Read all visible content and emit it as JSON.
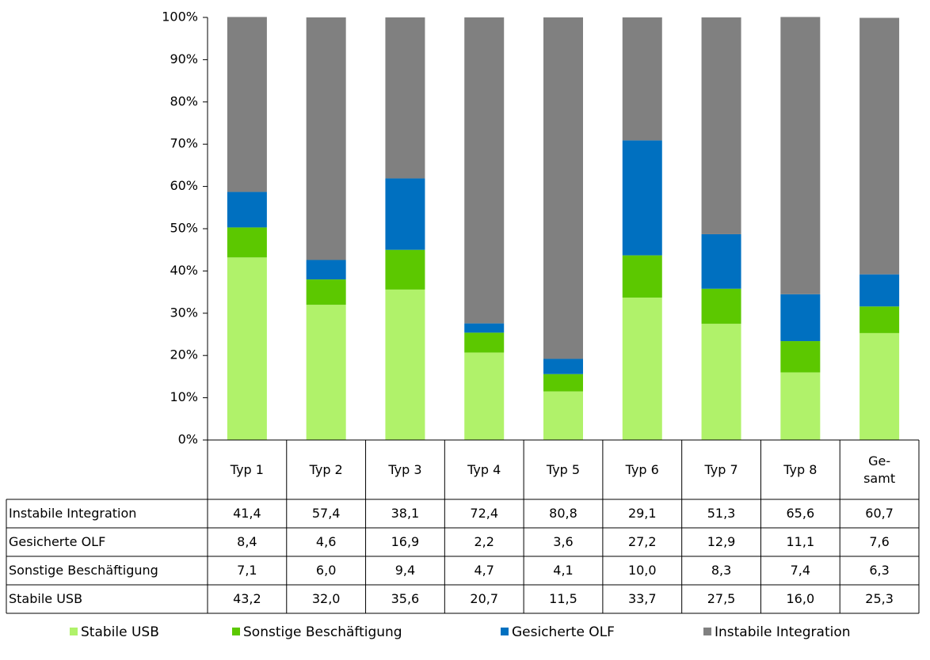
{
  "chart_data": {
    "type": "bar",
    "stacked": true,
    "categories": [
      "Typ 1",
      "Typ 2",
      "Typ 3",
      "Typ 4",
      "Typ 5",
      "Typ 6",
      "Typ 7",
      "Typ 8",
      "Ge-\nsamt"
    ],
    "series": [
      {
        "name": "Stabile USB",
        "color": "#b0f26a",
        "values": [
          43.2,
          32.0,
          35.6,
          20.7,
          11.5,
          33.7,
          27.5,
          16.0,
          25.3
        ],
        "value_labels": [
          "43,2",
          "32,0",
          "35,6",
          "20,7",
          "11,5",
          "33,7",
          "27,5",
          "16,0",
          "25,3"
        ]
      },
      {
        "name": "Sonstige Beschäftigung",
        "color": "#5cc800",
        "values": [
          7.1,
          6.0,
          9.4,
          4.7,
          4.1,
          10.0,
          8.3,
          7.4,
          6.3
        ],
        "value_labels": [
          "7,1",
          "6,0",
          "9,4",
          "4,7",
          "4,1",
          "10,0",
          "8,3",
          "7,4",
          "6,3"
        ]
      },
      {
        "name": "Gesicherte OLF",
        "color": "#0070c0",
        "values": [
          8.4,
          4.6,
          16.9,
          2.2,
          3.6,
          27.2,
          12.9,
          11.1,
          7.6
        ],
        "value_labels": [
          "8,4",
          "4,6",
          "16,9",
          "2,2",
          "3,6",
          "27,2",
          "12,9",
          "11,1",
          "7,6"
        ]
      },
      {
        "name": "Instabile Integration",
        "color": "#808080",
        "values": [
          41.4,
          57.4,
          38.1,
          72.4,
          80.8,
          29.1,
          51.3,
          65.6,
          60.7
        ],
        "value_labels": [
          "41,4",
          "57,4",
          "38,1",
          "72,4",
          "80,8",
          "29,1",
          "51,3",
          "65,6",
          "60,7"
        ]
      }
    ],
    "ylim": [
      0,
      100
    ],
    "yticks": [
      {
        "value": 0,
        "label": "0%"
      },
      {
        "value": 10,
        "label": "10%"
      },
      {
        "value": 20,
        "label": "20%"
      },
      {
        "value": 30,
        "label": "30%"
      },
      {
        "value": 40,
        "label": "40%"
      },
      {
        "value": 50,
        "label": "50%"
      },
      {
        "value": 60,
        "label": "60%"
      },
      {
        "value": 70,
        "label": "70%"
      },
      {
        "value": 80,
        "label": "80%"
      },
      {
        "value": 90,
        "label": "90%"
      },
      {
        "value": 100,
        "label": "100%"
      }
    ],
    "grid": false
  }
}
